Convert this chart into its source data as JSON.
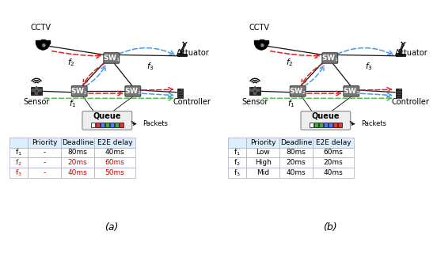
{
  "table_a": {
    "header": [
      "",
      "Priority",
      "Deadline",
      "E2E delay"
    ],
    "rows": [
      [
        "f₁",
        "-",
        "80ms",
        "40ms"
      ],
      [
        "f₂",
        "-",
        "20ms",
        "60ms"
      ],
      [
        "f₃",
        "-",
        "40ms",
        "50ms"
      ]
    ],
    "row_colors": [
      "#000000",
      "#cc0000",
      "#cc0000"
    ]
  },
  "table_b": {
    "header": [
      "",
      "Priority",
      "Deadline",
      "E2E delay"
    ],
    "rows": [
      [
        "f₁",
        "Low",
        "80ms",
        "60ms"
      ],
      [
        "f₂",
        "High",
        "20ms",
        "20ms"
      ],
      [
        "f₃",
        "Mid",
        "40ms",
        "40ms"
      ]
    ],
    "row_colors": [
      "#000000",
      "#000000",
      "#000000"
    ]
  },
  "queue_colors_a": [
    "#ffffff",
    "#ee3333",
    "#5577ff",
    "#44aa44",
    "#5577ff",
    "#44aa44",
    "#ee3333"
  ],
  "queue_colors_b": [
    "#ffffff",
    "#44aa44",
    "#44aa44",
    "#5577ff",
    "#5577ff",
    "#ee3333",
    "#ee3333"
  ],
  "bg_color": "#ffffff",
  "switch_color": "#777777",
  "table_header_bg": "#ddeeff",
  "table_row_bg": "#ffffff",
  "line_color": "#111111",
  "red_arrow": "#dd2222",
  "green_arrow": "#55bb55",
  "blue_arrow": "#4499ee"
}
